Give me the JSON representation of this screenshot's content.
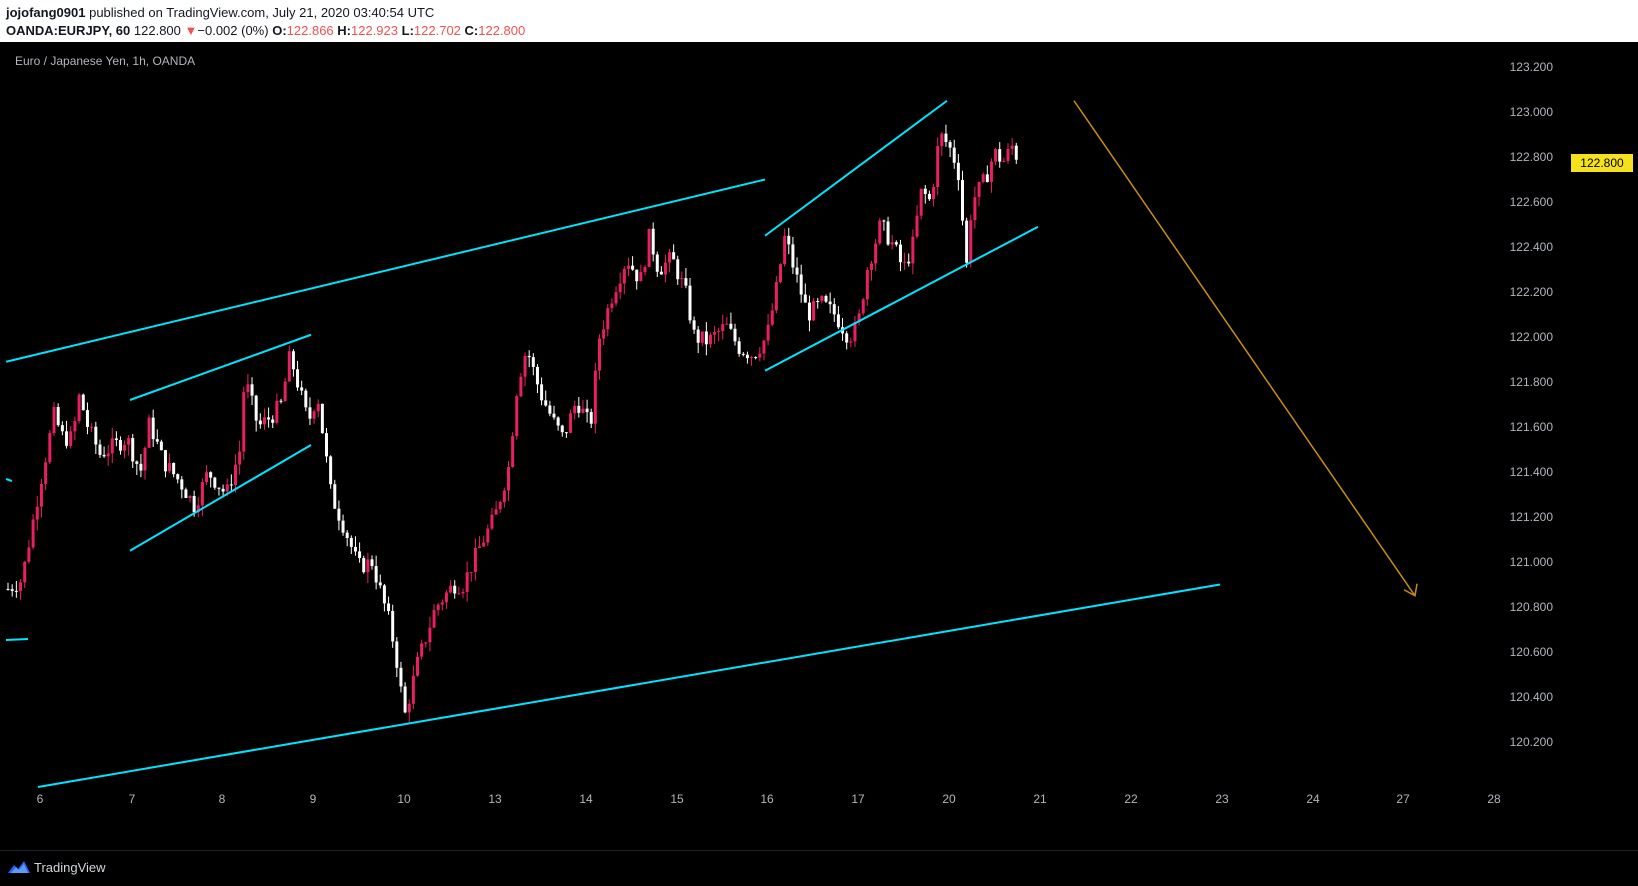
{
  "header": {
    "author": "jojofang0901",
    "published_text": "published on TradingView.com, July 21, 2020 03:40:54 UTC",
    "symbol_interval": "OANDA:EURJPY, 60",
    "last": "122.800",
    "change": "−0.002 (0%)",
    "open_label": "O:",
    "open": "122.866",
    "high_label": "H:",
    "high": "122.923",
    "low_label": "L:",
    "low": "122.702",
    "close_label": "C:",
    "close": "122.800"
  },
  "legend": "Euro / Japanese Yen, 1h, OANDA",
  "price_label": "122.800",
  "footer": {
    "brand": "TradingView"
  },
  "colors": {
    "up": "#e91e63",
    "down": "#ffffff",
    "trendline": "#00e5ff",
    "arrow": "#c98e10",
    "price_tag": "#f5e11c"
  },
  "chart_data": {
    "type": "candlestick",
    "symbol": "OANDA:EURJPY",
    "interval": "1h",
    "ylim": [
      120.05,
      123.25
    ],
    "y_ticks": [
      "123.200",
      "123.000",
      "122.800",
      "122.600",
      "122.400",
      "122.200",
      "122.000",
      "121.800",
      "121.600",
      "121.400",
      "121.200",
      "121.000",
      "120.800",
      "120.600",
      "120.400",
      "120.200"
    ],
    "x_ticks": [
      "6",
      "7",
      "8",
      "9",
      "10",
      "13",
      "14",
      "15",
      "16",
      "17",
      "20",
      "21",
      "22",
      "23",
      "24",
      "27",
      "28"
    ],
    "last_price": 122.8,
    "key_levels": {
      "low_jul10": 120.3,
      "high_jul20": 122.98,
      "high_jul6": 121.97
    },
    "trendlines": [
      {
        "name": "upper-channel",
        "from": [
          "Jul 3",
          121.89
        ],
        "to": [
          "Jul 16",
          122.7
        ]
      },
      {
        "name": "lower-channel",
        "from": [
          "Jul 6",
          120.0
        ],
        "to": [
          "Jul 23",
          120.9
        ]
      },
      {
        "name": "wedge1-top",
        "from": [
          "Jul 7",
          121.72
        ],
        "to": [
          "Jul 9",
          122.01
        ]
      },
      {
        "name": "wedge1-bottom",
        "from": [
          "Jul 7",
          121.05
        ],
        "to": [
          "Jul 9",
          121.52
        ]
      },
      {
        "name": "wedge2-top",
        "from": [
          "Jul 16",
          122.45
        ],
        "to": [
          "Jul 20",
          123.05
        ]
      },
      {
        "name": "wedge2-bottom",
        "from": [
          "Jul 16",
          121.85
        ],
        "to": [
          "Jul 21",
          122.49
        ]
      }
    ],
    "projection_arrow": {
      "from": [
        "Jul 21",
        123.05
      ],
      "to": [
        "Jul 27",
        120.85
      ]
    }
  }
}
